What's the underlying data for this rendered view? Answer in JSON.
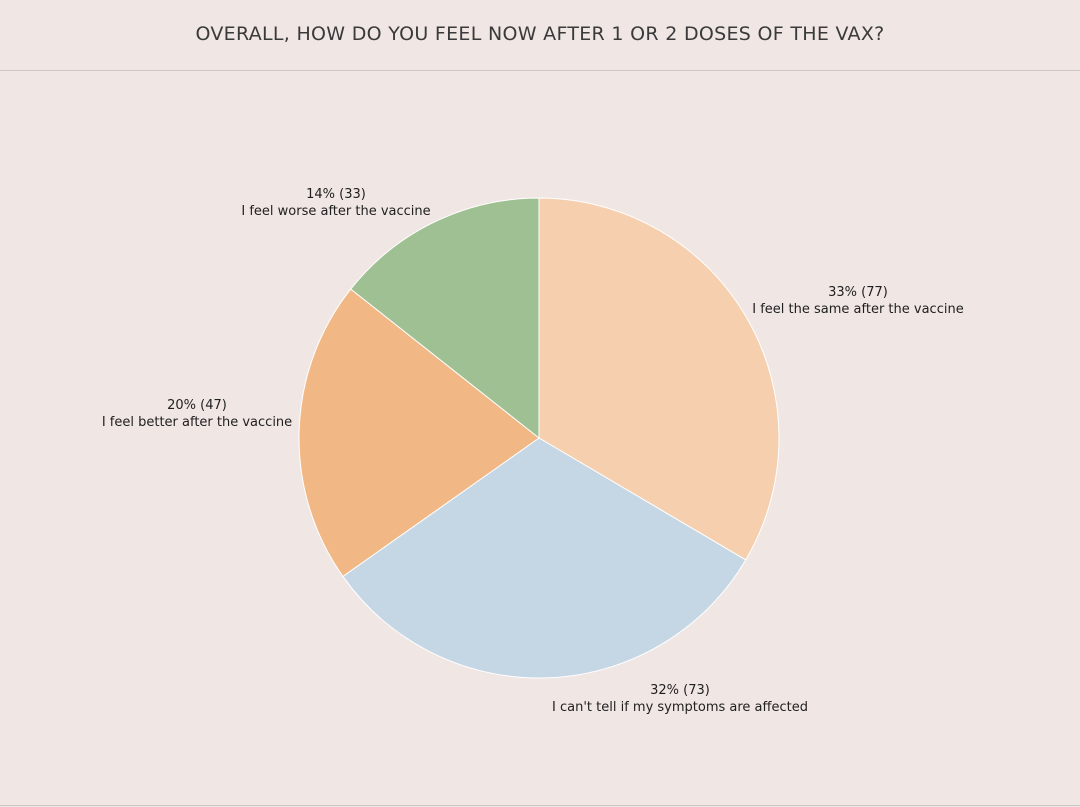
{
  "header": {
    "title": "OVERALL, HOW DO YOU FEEL NOW AFTER 1 OR 2 DOSES OF THE VAX?"
  },
  "chart_data": {
    "type": "pie",
    "title": "OVERALL, HOW DO YOU FEEL NOW AFTER 1 OR 2 DOSES OF THE VAX?",
    "slices": [
      {
        "label": "I feel the same after the vaccine",
        "percent": "33%",
        "count": 77,
        "value_text": "33% (77)",
        "color": "#f6cfae"
      },
      {
        "label": "I can't tell if my symptoms are affected",
        "percent": "32%",
        "count": 73,
        "value_text": "32% (73)",
        "color": "#c5d6e5"
      },
      {
        "label": "I feel better after the vaccine",
        "percent": "20%",
        "count": 47,
        "value_text": "20% (47)",
        "color": "#f1b784"
      },
      {
        "label": "I feel worse after the vaccine",
        "percent": "14%",
        "count": 33,
        "value_text": "14% (33)",
        "color": "#9fc092"
      }
    ]
  }
}
